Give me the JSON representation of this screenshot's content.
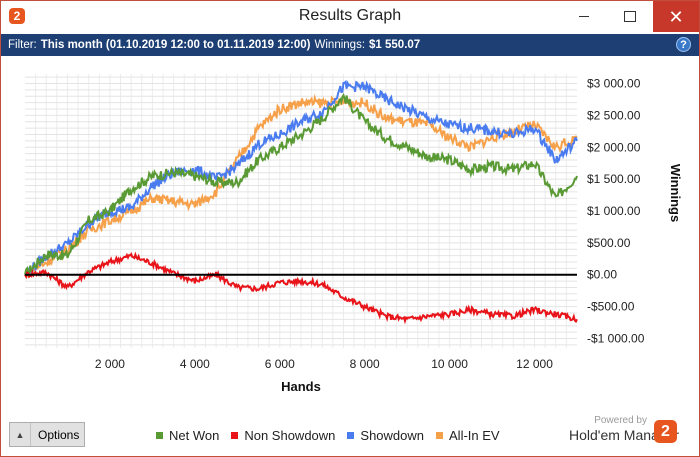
{
  "window": {
    "title": "Results Graph",
    "app_icon_glyph": "2",
    "minimize_icon": "minimize-icon",
    "maximize_icon": "maximize-icon",
    "close_glyph": "✕"
  },
  "filter": {
    "prefix": "Filter:",
    "value": "This month (01.10.2019 12:00 to 01.11.2019 12:00)",
    "winnings_label": "Winnings:",
    "winnings_value": "$1 550.07",
    "help_glyph": "?"
  },
  "footer": {
    "options_caret": "▲",
    "options_label": "Options",
    "powered_by": "Powered by",
    "brand": "Hold'em Manager",
    "brand_logo_glyph": "2"
  },
  "colors": {
    "net_won": "#5a9a35",
    "non_showdown": "#e8141a",
    "showdown": "#4a7cf0",
    "all_in_ev": "#f6a04a",
    "zero_line": "#000000",
    "title_accent": "#1d3f73"
  },
  "chart_data": {
    "type": "line",
    "xlabel": "Hands",
    "ylabel": "Winnings",
    "xlim": [
      0,
      13000
    ],
    "ylim": [
      -1150,
      3150
    ],
    "x_ticks": [
      2000,
      4000,
      6000,
      8000,
      10000,
      12000
    ],
    "x_tick_labels": [
      "2 000",
      "4 000",
      "6 000",
      "8 000",
      "10 000",
      "12 000"
    ],
    "y_ticks": [
      3000,
      2500,
      2000,
      1500,
      1000,
      500,
      0,
      -500,
      -1000
    ],
    "y_tick_labels": [
      "$3 000.00",
      "$2 500.00",
      "$2 000.00",
      "$1 500.00",
      "$1 000.00",
      "$500.00",
      "$0.00",
      "-$500.00",
      "-$1 000.00"
    ],
    "grid": true,
    "legend_position": "bottom",
    "x": [
      0,
      500,
      1000,
      1500,
      2000,
      2500,
      3000,
      3500,
      4000,
      4500,
      5000,
      5500,
      6000,
      6500,
      7000,
      7500,
      8000,
      8500,
      9000,
      9500,
      10000,
      10500,
      11000,
      11500,
      12000,
      12500,
      13000
    ],
    "series": [
      {
        "name": "Net Won",
        "values": [
          0,
          320,
          300,
          850,
          1000,
          1350,
          1550,
          1600,
          1550,
          1450,
          1450,
          1800,
          2000,
          2200,
          2450,
          2800,
          2400,
          2150,
          2000,
          1850,
          1800,
          1650,
          1700,
          1650,
          1750,
          1200,
          1550
        ]
      },
      {
        "name": "Non Showdown",
        "values": [
          0,
          40,
          -200,
          50,
          200,
          300,
          180,
          20,
          -100,
          0,
          -200,
          -220,
          -120,
          -100,
          -150,
          -350,
          -500,
          -650,
          -700,
          -650,
          -620,
          -550,
          -620,
          -650,
          -550,
          -620,
          -700
        ]
      },
      {
        "name": "Showdown",
        "values": [
          0,
          300,
          480,
          800,
          1000,
          1050,
          1400,
          1600,
          1650,
          1500,
          1700,
          2050,
          2200,
          2400,
          2550,
          2950,
          2950,
          2750,
          2600,
          2450,
          2350,
          2300,
          2250,
          2200,
          2300,
          1800,
          2100
        ]
      },
      {
        "name": "All-In EV",
        "values": [
          0,
          200,
          400,
          700,
          850,
          1000,
          1200,
          1150,
          1100,
          1300,
          1800,
          2300,
          2600,
          2700,
          2700,
          2700,
          2700,
          2450,
          2400,
          2350,
          2150,
          2000,
          2150,
          2250,
          2350,
          2000,
          2150
        ]
      }
    ]
  }
}
